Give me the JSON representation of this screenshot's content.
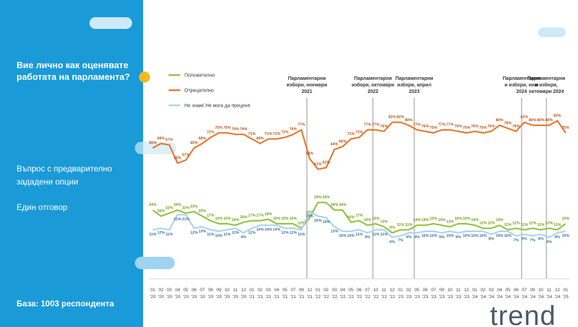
{
  "header": {
    "title": "Вие лично как оценявате работата на парламента?",
    "question": "Въпрос с предварително зададени опции",
    "answer": "Един отговор",
    "base": "База:  1003 респондента",
    "logo": "trend"
  },
  "chart_data": {
    "type": "line",
    "categories": [
      [
        "01",
        "'20"
      ],
      [
        "02",
        "'20"
      ],
      [
        "03",
        "'20"
      ],
      [
        "04",
        "'20"
      ],
      [
        "05",
        "'20"
      ],
      [
        "06",
        "'20"
      ],
      [
        "07",
        "'20"
      ],
      [
        "08",
        "'20"
      ],
      [
        "09",
        "'20"
      ],
      [
        "10",
        "'20"
      ],
      [
        "11",
        "'20"
      ],
      [
        "12",
        "'20"
      ],
      [
        "01",
        "'21"
      ],
      [
        "02",
        "'21"
      ],
      [
        "03",
        "'21"
      ],
      [
        "04",
        "'21"
      ],
      [
        "05",
        "'21"
      ],
      [
        "07",
        "'21"
      ],
      [
        "09",
        "'21"
      ],
      [
        "12",
        "'21"
      ],
      [
        "01",
        "'22"
      ],
      [
        "02",
        "'22"
      ],
      [
        "03",
        "'22"
      ],
      [
        "04",
        "'22"
      ],
      [
        "05",
        "'22"
      ],
      [
        "06",
        "'22"
      ],
      [
        "07",
        "'22"
      ],
      [
        "10",
        "'22"
      ],
      [
        "11",
        "'22"
      ],
      [
        "12",
        "'22"
      ],
      [
        "01",
        "'23"
      ],
      [
        "02",
        "'23"
      ],
      [
        "05",
        "'23"
      ],
      [
        "06",
        "'23"
      ],
      [
        "07",
        "'23"
      ],
      [
        "09",
        "'23"
      ],
      [
        "10",
        "'23"
      ],
      [
        "11",
        "'23"
      ],
      [
        "12",
        "'23"
      ],
      [
        "01",
        "'24"
      ],
      [
        "02",
        "'24"
      ],
      [
        "03",
        "'24"
      ],
      [
        "04",
        "'24"
      ],
      [
        "05",
        "'24"
      ],
      [
        "06",
        "'24"
      ],
      [
        "07",
        "'24"
      ],
      [
        "09",
        "'24"
      ],
      [
        "10",
        "'24"
      ],
      [
        "11",
        "'24"
      ],
      [
        "12",
        "'24"
      ],
      [
        "01",
        "'25"
      ]
    ],
    "series": [
      {
        "name": "Положително",
        "color": "#95c23d",
        "label_color": "#6e9a1c",
        "label_side": "above",
        "values": [
          24,
          20,
          22,
          24,
          22,
          23,
          20,
          17,
          15,
          15,
          14,
          16,
          17,
          17,
          18,
          15,
          15,
          15,
          12,
          19,
          29,
          29,
          24,
          24,
          16,
          17,
          14,
          15,
          13,
          9,
          11,
          11,
          14,
          14,
          15,
          14,
          13,
          15,
          15,
          14,
          12,
          12,
          14,
          11,
          12,
          11,
          12,
          11,
          12,
          11,
          15
        ],
        "value_labels": [
          "24%",
          "20%",
          "22%",
          "24%",
          "22%",
          "23%",
          "20%",
          "17%",
          "15%",
          "15%",
          "14%",
          "16%",
          "17%",
          "17%",
          "18%",
          "15%",
          "15%",
          "15%",
          "12%",
          "19%",
          "29%",
          "29%",
          "24%",
          "24%",
          "16%",
          "17%",
          "14%",
          "15%",
          "13%",
          "9%",
          "11%",
          "11%",
          "14%",
          "14%",
          "15%",
          "14%",
          "13%",
          "15%",
          "15%",
          "14%",
          "12%",
          "12%",
          "14%",
          "11%",
          "12%",
          "11%",
          "12%",
          "11%",
          "12%",
          "11%",
          "15%"
        ]
      },
      {
        "name": "Отрицателно",
        "color": "#e8772e",
        "label_color": "#b2521a",
        "label_side": "above",
        "values": [
          65,
          68,
          67,
          55,
          57,
          65,
          68,
          72,
          75,
          75,
          74,
          74,
          71,
          68,
          71,
          71,
          72,
          74,
          77,
          58,
          51,
          52,
          64,
          66,
          71,
          72,
          77,
          77,
          76,
          82,
          82,
          80,
          77,
          76,
          75,
          77,
          77,
          76,
          75,
          76,
          75,
          76,
          80,
          78,
          76,
          82,
          80,
          80,
          80,
          83,
          75
        ],
        "value_labels": [
          "65%",
          "68%",
          "67%",
          "55%",
          "57%",
          "65%",
          "68%",
          "72%",
          "75%",
          "75%",
          "74%",
          "74%",
          "71%",
          "68%",
          "71%",
          "71%",
          "72%",
          "74%",
          "77%",
          "58%",
          "51%",
          "52%",
          "64%",
          "66%",
          "71%",
          "72%",
          "77%",
          "77%",
          "76%",
          "82%",
          "82%",
          "80%",
          "77%",
          "76%",
          "75%",
          "77%",
          "77%",
          "76%",
          "75%",
          "76%",
          "75%",
          "76%",
          "80%",
          "78%",
          "76%",
          "82%",
          "80%",
          "80%",
          "80%",
          "83%",
          "75%"
        ]
      },
      {
        "name": "Не знам/ Не мога да преценя",
        "color": "#a8d4f2",
        "label_color": "#3d6f98",
        "label_side": "below",
        "values": [
          11,
          12,
          11,
          21,
          21,
          12,
          13,
          11,
          10,
          11,
          12,
          9,
          12,
          14,
          14,
          14,
          12,
          12,
          11,
          23,
          20,
          19,
          13,
          10,
          10,
          11,
          9,
          11,
          11,
          6,
          7,
          9,
          9,
          10,
          10,
          9,
          10,
          9,
          10,
          10,
          10,
          8,
          10,
          10,
          7,
          8,
          7,
          8,
          6,
          9,
          10
        ],
        "value_labels": [
          "11%",
          "12%",
          "11%",
          "21%",
          "21%",
          "12%",
          "13%",
          "11%",
          "10%",
          "11%",
          "12%",
          "9%",
          "12%",
          "14%",
          "14%",
          "14%",
          "12%",
          "12%",
          "11%",
          "23%",
          "20%",
          "19%",
          "13%",
          "10%",
          "10%",
          "11%",
          "9%",
          "11%",
          "11%",
          "6%",
          "7%",
          "9%",
          "9%",
          "10%",
          "10%",
          "9%",
          "10%",
          "9%",
          "10%",
          "10%",
          "10%",
          "8%",
          "10%",
          "10%",
          "7%",
          "8%",
          "7%",
          "8%",
          "6%",
          "9%",
          "10%"
        ]
      }
    ],
    "ylim": [
      0,
      90
    ],
    "annotations": [
      {
        "at": [
          "12",
          "'21"
        ],
        "lines": [
          "Парламентарни",
          "избори, ноември",
          "2021"
        ]
      },
      {
        "at": [
          "10",
          "'22"
        ],
        "lines": [
          "Парламентарни",
          "избори, октомври",
          "2022"
        ]
      },
      {
        "at": [
          "05",
          "'23"
        ],
        "lines": [
          "Парламентарни",
          "избори, април",
          "2023"
        ]
      },
      {
        "at": [
          "07",
          "'24"
        ],
        "lines": [
          "Парламентарни",
          "и избори, юни",
          "2024"
        ]
      },
      {
        "at": [
          "11",
          "'24"
        ],
        "lines": [
          "Парламентарни",
          "и избори,",
          "октомври 2024"
        ]
      }
    ]
  }
}
